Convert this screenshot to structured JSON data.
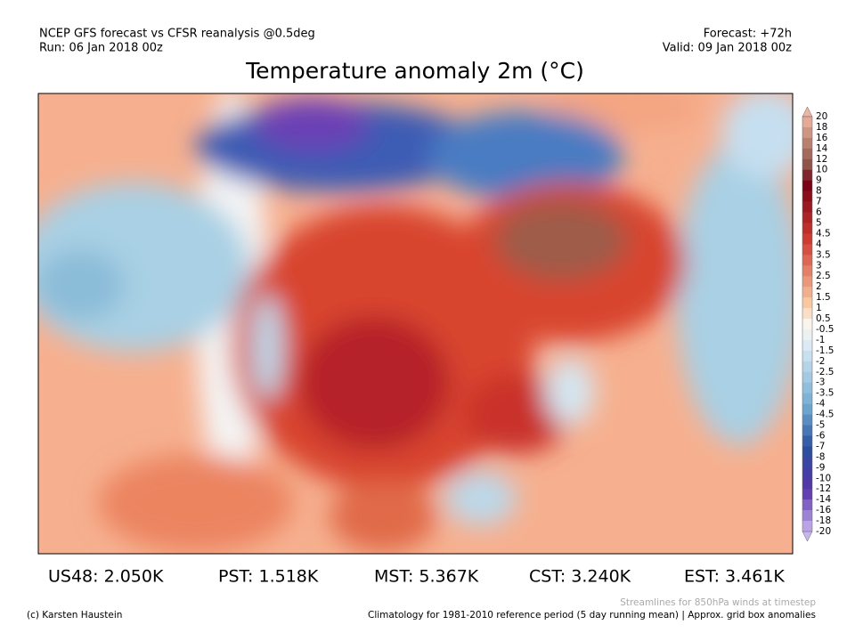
{
  "header": {
    "left": [
      "NCEP GFS forecast vs CFSR reanalysis @0.5deg",
      "Run: 06 Jan 2018 00z"
    ],
    "right": [
      "Forecast: +72h",
      "Valid: 09 Jan 2018 00z"
    ],
    "title": "Temperature anomaly 2m (°C)"
  },
  "colorbar": {
    "labels": [
      "20",
      "18",
      "16",
      "14",
      "12",
      "10",
      "9",
      "8",
      "7",
      "6",
      "5",
      "4.5",
      "4",
      "3.5",
      "3",
      "2.5",
      "2",
      "1.5",
      "1",
      "0.5",
      "-0.5",
      "-1",
      "-1.5",
      "-2",
      "-2.5",
      "-3",
      "-3.5",
      "-4",
      "-4.5",
      "-5",
      "-6",
      "-7",
      "-8",
      "-9",
      "-10",
      "-12",
      "-14",
      "-16",
      "-18",
      "-20"
    ]
  },
  "stats": [
    "US48: 2.050K",
    "PST: 1.518K",
    "MST: 5.367K",
    "CST: 3.240K",
    "EST: 3.461K"
  ],
  "footer": {
    "credit": "(c) Karsten Haustein",
    "streamlines": "Streamlines for 850hPa winds at timestep",
    "climatology": "Climatology for 1981-2010 reference period (5 day running mean) | Approx. grid box anomalies"
  }
}
